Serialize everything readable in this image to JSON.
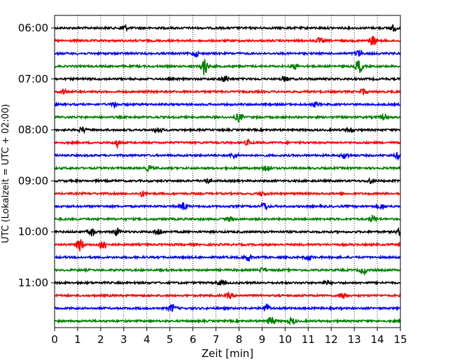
{
  "chart_data": {
    "type": "line",
    "title": "",
    "xlabel": "Zeit  [min]",
    "ylabel": "UTC (Lokalzeit = UTC + 02:00)",
    "xlim": [
      0,
      15
    ],
    "x_ticks": [
      "0",
      "1",
      "2",
      "3",
      "4",
      "5",
      "6",
      "7",
      "8",
      "9",
      "10",
      "11",
      "12",
      "13",
      "14",
      "15"
    ],
    "y_ticks": [
      "06:00",
      "07:00",
      "08:00",
      "09:00",
      "10:00",
      "11:00"
    ],
    "grid": "vertical dotted",
    "rows_per_hour": 4,
    "minutes_per_row": 15,
    "trace_colors": [
      "#000000",
      "#ff0000",
      "#0000ff",
      "#008000"
    ],
    "series": [
      {
        "start": "06:00",
        "color": "#000000",
        "events": [
          {
            "x": 3.0,
            "amp": 0.5
          },
          {
            "x": 14.7,
            "amp": 0.45
          }
        ]
      },
      {
        "start": "06:15",
        "color": "#ff0000",
        "events": [
          {
            "x": 11.5,
            "amp": 0.4
          },
          {
            "x": 13.8,
            "amp": 0.75
          }
        ]
      },
      {
        "start": "06:30",
        "color": "#0000ff",
        "events": [
          {
            "x": 6.1,
            "amp": 0.45
          },
          {
            "x": 13.2,
            "amp": 0.5
          }
        ]
      },
      {
        "start": "06:45",
        "color": "#008000",
        "events": [
          {
            "x": 6.5,
            "amp": 1.4
          },
          {
            "x": 10.4,
            "amp": 0.4
          },
          {
            "x": 13.2,
            "amp": 1.1
          }
        ]
      },
      {
        "start": "07:00",
        "color": "#000000",
        "events": [
          {
            "x": 7.4,
            "amp": 0.5
          },
          {
            "x": 10.0,
            "amp": 0.4
          }
        ]
      },
      {
        "start": "07:15",
        "color": "#ff0000",
        "events": [
          {
            "x": 0.4,
            "amp": 0.35
          },
          {
            "x": 13.4,
            "amp": 0.45
          }
        ]
      },
      {
        "start": "07:30",
        "color": "#0000ff",
        "events": [
          {
            "x": 2.6,
            "amp": 0.35
          },
          {
            "x": 11.3,
            "amp": 0.3
          }
        ]
      },
      {
        "start": "07:45",
        "color": "#008000",
        "events": [
          {
            "x": 8.0,
            "amp": 0.7
          },
          {
            "x": 14.3,
            "amp": 0.45
          }
        ]
      },
      {
        "start": "08:00",
        "color": "#000000",
        "events": [
          {
            "x": 1.2,
            "amp": 0.45
          },
          {
            "x": 4.5,
            "amp": 0.5
          },
          {
            "x": 12.8,
            "amp": 0.4
          }
        ]
      },
      {
        "start": "08:15",
        "color": "#ff0000",
        "events": [
          {
            "x": 2.7,
            "amp": 0.6
          },
          {
            "x": 8.4,
            "amp": 0.35
          }
        ]
      },
      {
        "start": "08:30",
        "color": "#0000ff",
        "events": [
          {
            "x": 7.8,
            "amp": 0.4
          },
          {
            "x": 12.6,
            "amp": 0.5
          },
          {
            "x": 14.9,
            "amp": 0.45
          }
        ]
      },
      {
        "start": "08:45",
        "color": "#008000",
        "events": [
          {
            "x": 4.1,
            "amp": 0.35
          },
          {
            "x": 9.2,
            "amp": 0.6
          }
        ]
      },
      {
        "start": "09:00",
        "color": "#000000",
        "events": [
          {
            "x": 6.6,
            "amp": 0.35
          },
          {
            "x": 13.7,
            "amp": 0.35
          }
        ]
      },
      {
        "start": "09:15",
        "color": "#ff0000",
        "events": [
          {
            "x": 3.8,
            "amp": 0.4
          },
          {
            "x": 9.0,
            "amp": 0.35
          }
        ]
      },
      {
        "start": "09:30",
        "color": "#0000ff",
        "events": [
          {
            "x": 5.6,
            "amp": 0.6
          },
          {
            "x": 9.1,
            "amp": 0.55
          },
          {
            "x": 14.2,
            "amp": 0.4
          }
        ]
      },
      {
        "start": "09:45",
        "color": "#008000",
        "events": [
          {
            "x": 7.6,
            "amp": 0.35
          },
          {
            "x": 13.8,
            "amp": 0.55
          }
        ]
      },
      {
        "start": "10:00",
        "color": "#000000",
        "events": [
          {
            "x": 1.6,
            "amp": 0.6
          },
          {
            "x": 2.7,
            "amp": 0.6
          },
          {
            "x": 4.5,
            "amp": 0.55
          },
          {
            "x": 15.0,
            "amp": 0.55
          }
        ]
      },
      {
        "start": "10:15",
        "color": "#ff0000",
        "events": [
          {
            "x": 1.1,
            "amp": 1.0
          },
          {
            "x": 2.1,
            "amp": 0.9
          }
        ]
      },
      {
        "start": "10:30",
        "color": "#0000ff",
        "events": [
          {
            "x": 8.4,
            "amp": 0.55
          },
          {
            "x": 11.0,
            "amp": 0.4
          }
        ]
      },
      {
        "start": "10:45",
        "color": "#008000",
        "events": [
          {
            "x": 9.0,
            "amp": 0.3
          },
          {
            "x": 13.4,
            "amp": 0.55
          }
        ]
      },
      {
        "start": "11:00",
        "color": "#000000",
        "events": [
          {
            "x": 7.2,
            "amp": 0.35
          },
          {
            "x": 11.8,
            "amp": 0.3
          }
        ]
      },
      {
        "start": "11:15",
        "color": "#ff0000",
        "events": [
          {
            "x": 7.6,
            "amp": 0.4
          },
          {
            "x": 12.5,
            "amp": 0.6
          }
        ]
      },
      {
        "start": "11:30",
        "color": "#0000ff",
        "events": [
          {
            "x": 5.1,
            "amp": 0.6
          },
          {
            "x": 9.2,
            "amp": 0.6
          }
        ]
      },
      {
        "start": "11:45",
        "color": "#008000",
        "events": [
          {
            "x": 9.4,
            "amp": 0.75
          },
          {
            "x": 10.3,
            "amp": 0.5
          }
        ]
      }
    ]
  }
}
